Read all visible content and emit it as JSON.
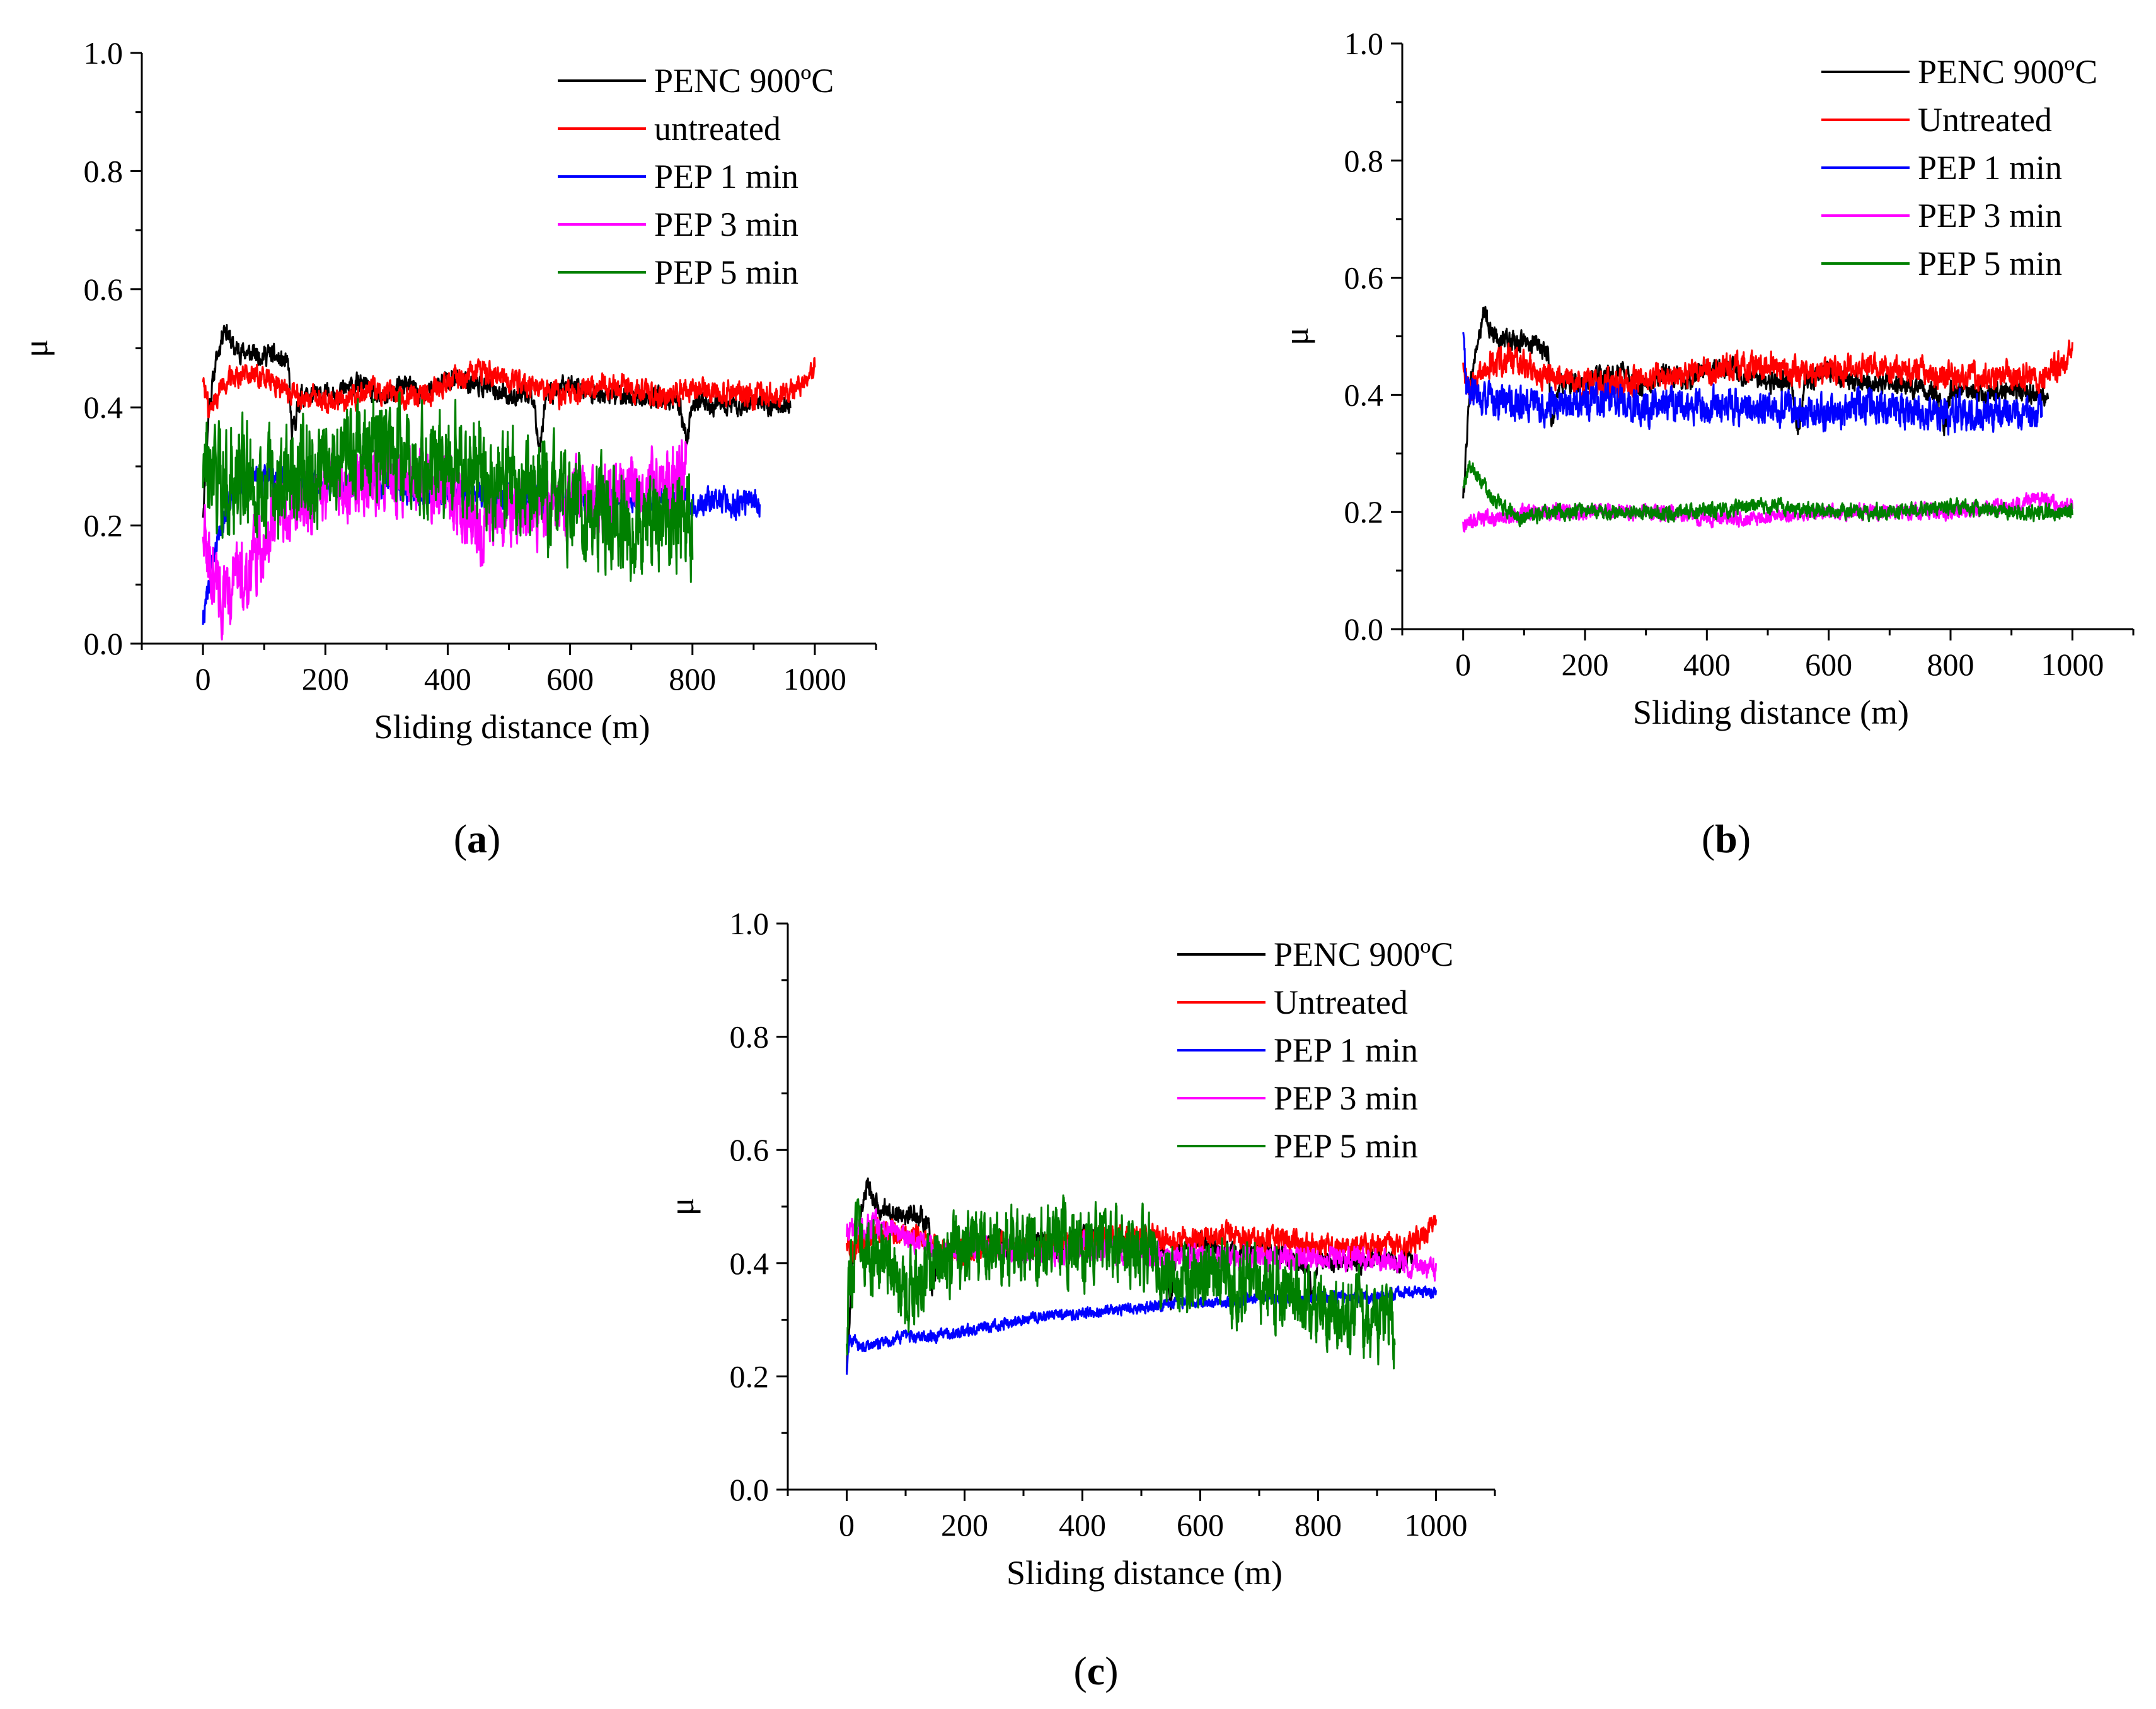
{
  "figure": {
    "panels": [
      {
        "id": "a",
        "caption": "a"
      },
      {
        "id": "b",
        "caption": "b"
      },
      {
        "id": "c",
        "caption": "c"
      }
    ]
  },
  "chart_data": [
    {
      "id": "a",
      "type": "line",
      "title": "",
      "xlabel": "Sliding distance (m)",
      "ylabel": "μ",
      "xlim": [
        -100,
        1100
      ],
      "ylim": [
        0.0,
        1.0
      ],
      "xticks": [
        "0",
        "200",
        "400",
        "600",
        "800",
        "1000"
      ],
      "yticks": [
        "0.0",
        "0.2",
        "0.4",
        "0.6",
        "0.8",
        "1.0"
      ],
      "legend": "top-right",
      "series": [
        {
          "name": "PENC 900ºC",
          "color": "#000000",
          "x": [
            0,
            10,
            20,
            35,
            50,
            80,
            110,
            140,
            145,
            160,
            200,
            230,
            260,
            290,
            330,
            360,
            400,
            450,
            500,
            540,
            550,
            560,
            600,
            650,
            700,
            760,
            780,
            790,
            800,
            850,
            900,
            950,
            960
          ],
          "y": [
            0.22,
            0.4,
            0.47,
            0.54,
            0.5,
            0.49,
            0.49,
            0.47,
            0.35,
            0.42,
            0.42,
            0.43,
            0.44,
            0.41,
            0.44,
            0.42,
            0.45,
            0.44,
            0.42,
            0.42,
            0.33,
            0.42,
            0.44,
            0.42,
            0.42,
            0.41,
            0.4,
            0.34,
            0.41,
            0.4,
            0.41,
            0.4,
            0.4
          ],
          "noise": 0.012
        },
        {
          "name": "untreated",
          "color": "#ff0000",
          "x": [
            0,
            10,
            30,
            60,
            100,
            150,
            200,
            250,
            300,
            350,
            400,
            450,
            500,
            550,
            600,
            650,
            700,
            750,
            800,
            850,
            900,
            950,
            980,
            1000
          ],
          "y": [
            0.45,
            0.39,
            0.44,
            0.46,
            0.45,
            0.42,
            0.41,
            0.42,
            0.43,
            0.42,
            0.44,
            0.46,
            0.45,
            0.43,
            0.42,
            0.44,
            0.43,
            0.42,
            0.43,
            0.43,
            0.42,
            0.42,
            0.44,
            0.47
          ],
          "noise": 0.014
        },
        {
          "name": "PEP 1 min",
          "color": "#0000ff",
          "x": [
            0,
            10,
            20,
            40,
            60,
            100,
            150,
            200,
            250,
            300,
            350,
            400,
            450,
            500,
            550,
            600,
            650,
            700,
            750,
            800,
            850,
            900,
            910
          ],
          "y": [
            0.04,
            0.1,
            0.17,
            0.24,
            0.28,
            0.28,
            0.27,
            0.27,
            0.27,
            0.27,
            0.26,
            0.25,
            0.25,
            0.24,
            0.24,
            0.24,
            0.24,
            0.24,
            0.24,
            0.24,
            0.24,
            0.24,
            0.24
          ],
          "noise": 0.016
        },
        {
          "name": "PEP 3 min",
          "color": "#ff00ff",
          "x": [
            0,
            10,
            25,
            40,
            55,
            70,
            90,
            110,
            150,
            200,
            250,
            300,
            350,
            400,
            450,
            500,
            550,
            600,
            650,
            700,
            750,
            790
          ],
          "y": [
            0.2,
            0.14,
            0.1,
            0.06,
            0.13,
            0.11,
            0.16,
            0.2,
            0.24,
            0.27,
            0.27,
            0.28,
            0.28,
            0.26,
            0.2,
            0.22,
            0.23,
            0.25,
            0.25,
            0.26,
            0.28,
            0.29
          ],
          "noise": 0.04
        },
        {
          "name": "PEP 5 min",
          "color": "#008000",
          "x": [
            0,
            20,
            50,
            100,
            150,
            200,
            250,
            300,
            350,
            400,
            450,
            500,
            550,
            600,
            650,
            700,
            750,
            800
          ],
          "y": [
            0.29,
            0.28,
            0.28,
            0.27,
            0.29,
            0.31,
            0.32,
            0.33,
            0.31,
            0.3,
            0.3,
            0.27,
            0.26,
            0.24,
            0.23,
            0.21,
            0.2,
            0.2
          ],
          "noise": 0.06
        }
      ]
    },
    {
      "id": "b",
      "type": "line",
      "title": "",
      "xlabel": "Sliding distance (m)",
      "ylabel": "μ",
      "xlim": [
        -100,
        1100
      ],
      "ylim": [
        0.0,
        1.0
      ],
      "xticks": [
        "0",
        "200",
        "400",
        "600",
        "800",
        "1000"
      ],
      "yticks": [
        "0.0",
        "0.2",
        "0.4",
        "0.6",
        "0.8",
        "1.0"
      ],
      "legend": "top-right",
      "series": [
        {
          "name": "PENC 900ºC",
          "color": "#000000",
          "x": [
            0,
            10,
            20,
            35,
            50,
            80,
            110,
            140,
            145,
            160,
            200,
            230,
            260,
            290,
            330,
            360,
            400,
            450,
            500,
            540,
            550,
            560,
            600,
            650,
            700,
            760,
            780,
            790,
            800,
            850,
            900,
            950,
            960
          ],
          "y": [
            0.22,
            0.4,
            0.47,
            0.54,
            0.5,
            0.49,
            0.49,
            0.47,
            0.35,
            0.42,
            0.42,
            0.43,
            0.44,
            0.41,
            0.44,
            0.42,
            0.45,
            0.44,
            0.42,
            0.42,
            0.33,
            0.42,
            0.44,
            0.42,
            0.42,
            0.41,
            0.4,
            0.34,
            0.41,
            0.4,
            0.41,
            0.4,
            0.4
          ],
          "noise": 0.012
        },
        {
          "name": "Untreated",
          "color": "#ff0000",
          "x": [
            0,
            10,
            30,
            60,
            100,
            150,
            200,
            250,
            300,
            350,
            400,
            450,
            500,
            550,
            600,
            650,
            700,
            750,
            800,
            850,
            900,
            950,
            980,
            1000
          ],
          "y": [
            0.45,
            0.41,
            0.44,
            0.46,
            0.45,
            0.43,
            0.42,
            0.42,
            0.43,
            0.43,
            0.44,
            0.45,
            0.45,
            0.44,
            0.44,
            0.45,
            0.44,
            0.44,
            0.43,
            0.43,
            0.43,
            0.43,
            0.45,
            0.47
          ],
          "noise": 0.016
        },
        {
          "name": "PEP 1 min",
          "color": "#0000ff",
          "x": [
            0,
            5,
            20,
            50,
            100,
            150,
            200,
            250,
            300,
            350,
            400,
            450,
            500,
            550,
            600,
            650,
            700,
            750,
            800,
            850,
            900,
            950
          ],
          "y": [
            0.5,
            0.41,
            0.4,
            0.39,
            0.38,
            0.38,
            0.39,
            0.39,
            0.38,
            0.38,
            0.38,
            0.38,
            0.38,
            0.37,
            0.37,
            0.38,
            0.38,
            0.37,
            0.37,
            0.37,
            0.37,
            0.37
          ],
          "noise": 0.02
        },
        {
          "name": "PEP 3 min",
          "color": "#ff00ff",
          "x": [
            0,
            50,
            100,
            150,
            200,
            300,
            400,
            500,
            600,
            700,
            800,
            900,
            950,
            1000
          ],
          "y": [
            0.18,
            0.19,
            0.2,
            0.2,
            0.2,
            0.2,
            0.19,
            0.19,
            0.2,
            0.2,
            0.2,
            0.21,
            0.22,
            0.21
          ],
          "noise": 0.009
        },
        {
          "name": "PEP 5 min",
          "color": "#008000",
          "x": [
            0,
            10,
            20,
            40,
            60,
            80,
            100,
            150,
            200,
            300,
            400,
            500,
            600,
            700,
            800,
            900,
            1000
          ],
          "y": [
            0.24,
            0.28,
            0.27,
            0.24,
            0.21,
            0.2,
            0.19,
            0.2,
            0.2,
            0.2,
            0.2,
            0.21,
            0.2,
            0.2,
            0.21,
            0.2,
            0.2
          ],
          "noise": 0.009
        }
      ]
    },
    {
      "id": "c",
      "type": "line",
      "title": "",
      "xlabel": "Sliding distance (m)",
      "ylabel": "μ",
      "xlim": [
        -100,
        1100
      ],
      "ylim": [
        0.0,
        1.0
      ],
      "xticks": [
        "0",
        "200",
        "400",
        "600",
        "800",
        "1000"
      ],
      "yticks": [
        "0.0",
        "0.2",
        "0.4",
        "0.6",
        "0.8",
        "1.0"
      ],
      "legend": "top-right",
      "series": [
        {
          "name": "PENC 900ºC",
          "color": "#000000",
          "x": [
            0,
            10,
            20,
            35,
            50,
            80,
            110,
            140,
            145,
            160,
            200,
            230,
            260,
            290,
            330,
            360,
            400,
            450,
            500,
            540,
            550,
            560,
            600,
            650,
            700,
            760,
            780,
            790,
            800,
            850,
            900,
            950,
            960
          ],
          "y": [
            0.22,
            0.4,
            0.47,
            0.54,
            0.5,
            0.49,
            0.49,
            0.47,
            0.35,
            0.42,
            0.42,
            0.43,
            0.44,
            0.41,
            0.44,
            0.42,
            0.45,
            0.44,
            0.42,
            0.42,
            0.33,
            0.42,
            0.44,
            0.42,
            0.42,
            0.41,
            0.4,
            0.34,
            0.41,
            0.4,
            0.41,
            0.4,
            0.4
          ],
          "noise": 0.012
        },
        {
          "name": "Untreated",
          "color": "#ff0000",
          "x": [
            0,
            10,
            30,
            60,
            100,
            150,
            200,
            250,
            300,
            350,
            400,
            450,
            500,
            550,
            600,
            650,
            700,
            750,
            800,
            850,
            900,
            950,
            980,
            1000
          ],
          "y": [
            0.45,
            0.42,
            0.44,
            0.46,
            0.45,
            0.43,
            0.42,
            0.43,
            0.43,
            0.43,
            0.44,
            0.45,
            0.45,
            0.44,
            0.44,
            0.45,
            0.44,
            0.44,
            0.43,
            0.43,
            0.43,
            0.43,
            0.45,
            0.47
          ],
          "noise": 0.014
        },
        {
          "name": "PEP 1 min",
          "color": "#0000ff",
          "x": [
            0,
            5,
            15,
            30,
            60,
            100,
            150,
            200,
            250,
            300,
            350,
            400,
            450,
            500,
            550,
            600,
            650,
            700,
            750,
            800,
            850,
            900,
            950,
            1000
          ],
          "y": [
            0.21,
            0.27,
            0.26,
            0.25,
            0.26,
            0.27,
            0.27,
            0.28,
            0.29,
            0.3,
            0.31,
            0.31,
            0.32,
            0.32,
            0.33,
            0.33,
            0.33,
            0.34,
            0.34,
            0.34,
            0.34,
            0.34,
            0.35,
            0.35
          ],
          "noise": 0.007
        },
        {
          "name": "PEP 3 min",
          "color": "#ff00ff",
          "x": [
            0,
            20,
            50,
            100,
            150,
            200,
            250,
            300,
            350,
            400,
            450,
            500,
            550,
            600,
            650,
            700,
            750,
            800,
            850,
            900,
            950,
            1000
          ],
          "y": [
            0.46,
            0.46,
            0.47,
            0.45,
            0.42,
            0.43,
            0.43,
            0.42,
            0.42,
            0.43,
            0.42,
            0.42,
            0.41,
            0.41,
            0.41,
            0.41,
            0.41,
            0.41,
            0.41,
            0.41,
            0.4,
            0.39
          ],
          "noise": 0.014
        },
        {
          "name": "PEP 5 min",
          "color": "#008000",
          "x": [
            0,
            5,
            20,
            50,
            80,
            100,
            120,
            150,
            200,
            250,
            300,
            350,
            400,
            450,
            500,
            550,
            600,
            650,
            700,
            750,
            800,
            850,
            900,
            930
          ],
          "y": [
            0.3,
            0.36,
            0.44,
            0.42,
            0.38,
            0.34,
            0.36,
            0.4,
            0.43,
            0.43,
            0.42,
            0.44,
            0.43,
            0.44,
            0.42,
            0.38,
            0.38,
            0.36,
            0.36,
            0.35,
            0.32,
            0.31,
            0.3,
            0.28
          ],
          "noise": 0.045
        }
      ]
    }
  ]
}
